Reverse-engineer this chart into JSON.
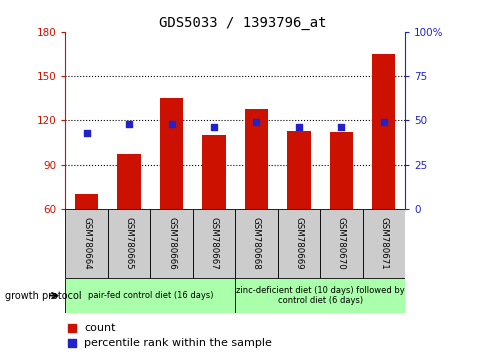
{
  "title": "GDS5033 / 1393796_at",
  "samples": [
    "GSM780664",
    "GSM780665",
    "GSM780666",
    "GSM780667",
    "GSM780668",
    "GSM780669",
    "GSM780670",
    "GSM780671"
  ],
  "counts": [
    70,
    97,
    135,
    110,
    128,
    113,
    112,
    165
  ],
  "percentiles": [
    43,
    48,
    48,
    46,
    49,
    46,
    46,
    49
  ],
  "ylim_left": [
    60,
    180
  ],
  "ylim_right": [
    0,
    100
  ],
  "yticks_left": [
    60,
    90,
    120,
    150,
    180
  ],
  "yticks_right": [
    0,
    25,
    50,
    75,
    100
  ],
  "ytick_labels_left": [
    "60",
    "90",
    "120",
    "150",
    "180"
  ],
  "ytick_labels_right": [
    "0",
    "25",
    "50",
    "75",
    "100%"
  ],
  "bar_color": "#cc1100",
  "dot_color": "#2222cc",
  "group1_label": "pair-fed control diet (16 days)",
  "group2_label": "zinc-deficient diet (10 days) followed by\ncontrol diet (6 days)",
  "group1_samples": [
    0,
    1,
    2,
    3
  ],
  "group2_samples": [
    4,
    5,
    6,
    7
  ],
  "group_color": "#aaffaa",
  "sample_box_color": "#cccccc",
  "protocol_label": "growth protocol",
  "title_fontsize": 10,
  "tick_fontsize": 7.5,
  "bar_width": 0.55
}
